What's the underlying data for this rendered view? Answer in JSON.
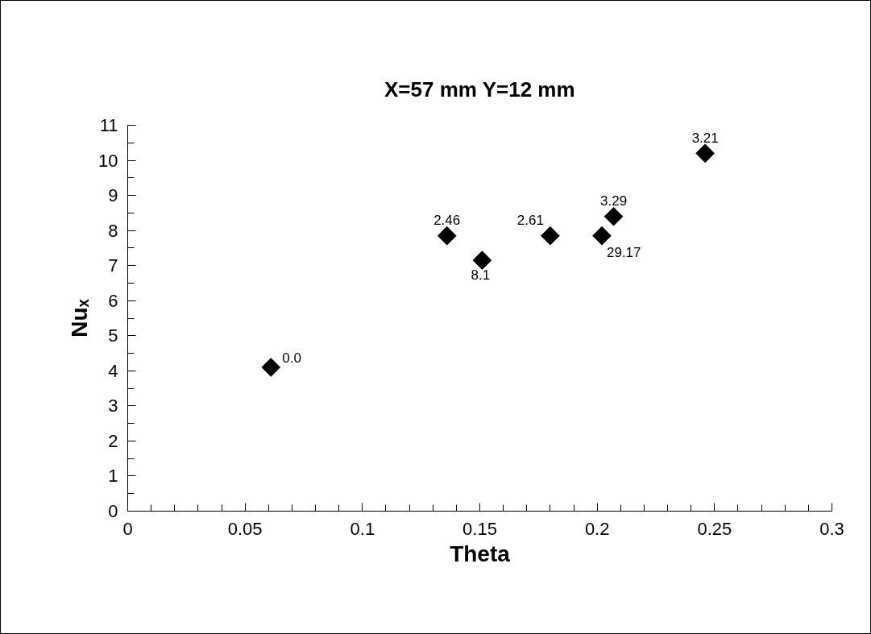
{
  "chart_data": {
    "type": "scatter",
    "title": "X=57 mm Y=12 mm",
    "xlabel": "Theta",
    "ylabel": "Nuₓ",
    "x": [
      0.061,
      0.136,
      0.151,
      0.18,
      0.202,
      0.207,
      0.246
    ],
    "values": [
      4.1,
      7.85,
      7.15,
      7.85,
      7.85,
      8.4,
      10.2
    ],
    "color": "#000000",
    "marker": "diamond",
    "xlim": [
      0,
      0.3
    ],
    "xticks": [
      0,
      0.05,
      0.1,
      0.15,
      0.2,
      0.25,
      0.3
    ],
    "ylim": [
      0,
      11
    ],
    "yticks": [
      0,
      1,
      2,
      3,
      4,
      5,
      6,
      7,
      8,
      9,
      10,
      11
    ],
    "grid": false,
    "annotations": [
      {
        "text": "0.0",
        "x": 0.061,
        "y": 4.1
      },
      {
        "text": "2.46",
        "x": 0.136,
        "y": 7.85
      },
      {
        "text": "8.1",
        "x": 0.151,
        "y": 7.15
      },
      {
        "text": "2.61",
        "x": 0.18,
        "y": 7.85
      },
      {
        "text": "29.17",
        "x": 0.202,
        "y": 7.85
      },
      {
        "text": "3.29",
        "x": 0.207,
        "y": 8.4
      },
      {
        "text": "3.21",
        "x": 0.246,
        "y": 10.2
      }
    ]
  }
}
